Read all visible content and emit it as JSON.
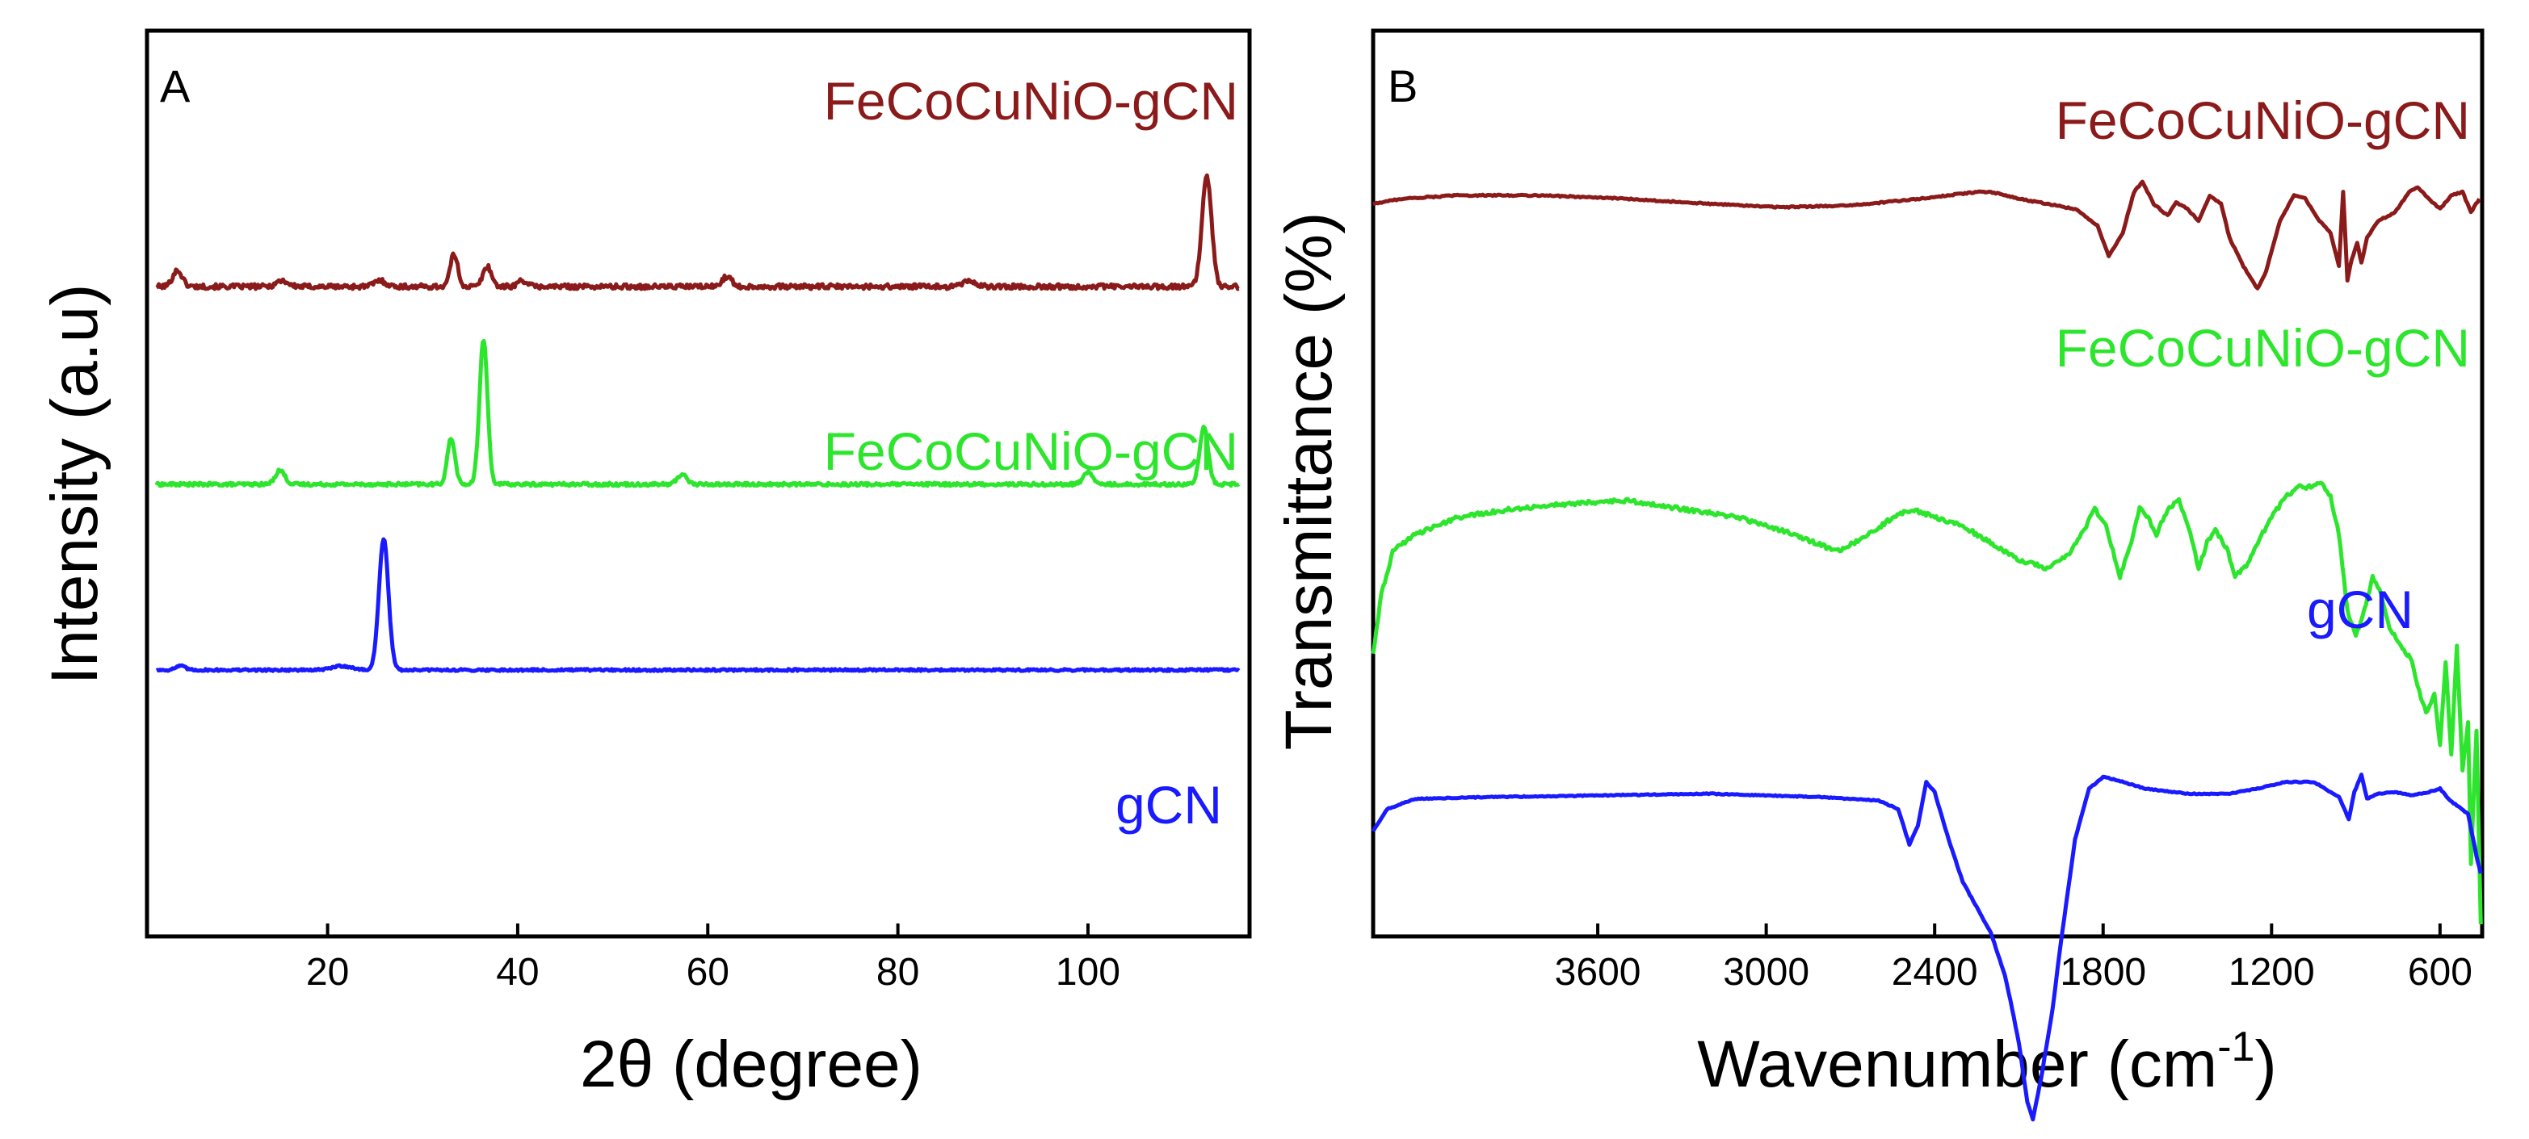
{
  "chart_data": [
    {
      "panel_label": "A",
      "type": "line",
      "xlabel": "2θ (degree)",
      "ylabel": "Intensity (a.u)",
      "xlim": [
        1,
        117
      ],
      "x_ticks": [
        20,
        40,
        60,
        80,
        100
      ],
      "y_ticks": [],
      "grid": false,
      "legend": "none",
      "series": [
        {
          "name": "FeCoCuNiO-gCN",
          "color": "#8b1a1a",
          "baseline": 0.1,
          "noise": 0.012,
          "peaks": [
            [
              4.2,
              0.08,
              0.5
            ],
            [
              15.2,
              0.03,
              0.6
            ],
            [
              25.5,
              0.03,
              0.6
            ],
            [
              33.3,
              0.16,
              0.4
            ],
            [
              36.8,
              0.1,
              0.45
            ],
            [
              40.5,
              0.03,
              0.5
            ],
            [
              62,
              0.05,
              0.5
            ],
            [
              87.5,
              0.03,
              0.6
            ],
            [
              112.5,
              0.55,
              0.5
            ]
          ]
        },
        {
          "name": "FeCoCuNiO-gCN",
          "color": "#2ee52e",
          "baseline": -0.88,
          "noise": 0.008,
          "peaks": [
            [
              15,
              0.07,
              0.5
            ],
            [
              33,
              0.23,
              0.4
            ],
            [
              36.4,
              0.72,
              0.42
            ],
            [
              57.3,
              0.05,
              0.5
            ],
            [
              100,
              0.06,
              0.5
            ],
            [
              112.2,
              0.28,
              0.45
            ]
          ]
        },
        {
          "name": "gCN",
          "color": "#1a1aff",
          "baseline": -1.8,
          "noise": 0.005,
          "peaks": [
            [
              4.5,
              0.02,
              0.5
            ],
            [
              21.5,
              0.02,
              1.0
            ],
            [
              25.9,
              0.65,
              0.5
            ]
          ]
        }
      ]
    },
    {
      "panel_label": "B",
      "type": "line",
      "xlabel": "Wavenumber (cm",
      "xlabel_sup": "-1",
      "xlabel_close": ")",
      "ylabel": "Transmittance (%)",
      "xlim": [
        4400,
        450
      ],
      "x_ticks": [
        3600,
        3000,
        2400,
        1800,
        1200,
        600
      ],
      "y_ticks": [],
      "grid": false,
      "legend": "none",
      "series": [
        {
          "name": "FeCoCuNiO-gCN",
          "color": "#8b1a1a",
          "noise": 0.004,
          "points": [
            [
              4400,
              -0.25
            ],
            [
              4300,
              -0.22
            ],
            [
              4100,
              -0.2
            ],
            [
              3800,
              -0.2
            ],
            [
              3500,
              -0.22
            ],
            [
              3200,
              -0.25
            ],
            [
              2950,
              -0.27
            ],
            [
              2700,
              -0.26
            ],
            [
              2450,
              -0.22
            ],
            [
              2250,
              -0.18
            ],
            [
              2200,
              -0.18
            ],
            [
              2100,
              -0.22
            ],
            [
              1900,
              -0.28
            ],
            [
              1820,
              -0.38
            ],
            [
              1780,
              -0.56
            ],
            [
              1730,
              -0.42
            ],
            [
              1690,
              -0.18
            ],
            [
              1660,
              -0.12
            ],
            [
              1620,
              -0.25
            ],
            [
              1570,
              -0.32
            ],
            [
              1540,
              -0.24
            ],
            [
              1500,
              -0.28
            ],
            [
              1460,
              -0.35
            ],
            [
              1420,
              -0.2
            ],
            [
              1380,
              -0.25
            ],
            [
              1350,
              -0.45
            ],
            [
              1300,
              -0.62
            ],
            [
              1250,
              -0.75
            ],
            [
              1220,
              -0.65
            ],
            [
              1170,
              -0.35
            ],
            [
              1120,
              -0.2
            ],
            [
              1080,
              -0.22
            ],
            [
              1030,
              -0.35
            ],
            [
              990,
              -0.42
            ],
            [
              960,
              -0.62
            ],
            [
              945,
              -0.18
            ],
            [
              930,
              -0.7
            ],
            [
              915,
              -0.58
            ],
            [
              895,
              -0.48
            ],
            [
              880,
              -0.6
            ],
            [
              860,
              -0.45
            ],
            [
              820,
              -0.35
            ],
            [
              760,
              -0.3
            ],
            [
              710,
              -0.18
            ],
            [
              680,
              -0.15
            ],
            [
              640,
              -0.22
            ],
            [
              600,
              -0.28
            ],
            [
              560,
              -0.2
            ],
            [
              520,
              -0.18
            ],
            [
              490,
              -0.3
            ],
            [
              460,
              -0.22
            ]
          ]
        },
        {
          "name": "FeCoCuNiO-gCN",
          "color": "#2ee52e",
          "noise": 0.012,
          "points": [
            [
              4400,
              -2.9
            ],
            [
              4370,
              -2.55
            ],
            [
              4330,
              -2.3
            ],
            [
              4250,
              -2.2
            ],
            [
              4100,
              -2.1
            ],
            [
              3900,
              -2.05
            ],
            [
              3700,
              -2.02
            ],
            [
              3500,
              -2.0
            ],
            [
              3300,
              -2.05
            ],
            [
              3100,
              -2.1
            ],
            [
              2900,
              -2.2
            ],
            [
              2750,
              -2.3
            ],
            [
              2650,
              -2.22
            ],
            [
              2550,
              -2.1
            ],
            [
              2480,
              -2.05
            ],
            [
              2400,
              -2.1
            ],
            [
              2300,
              -2.15
            ],
            [
              2200,
              -2.25
            ],
            [
              2100,
              -2.35
            ],
            [
              2000,
              -2.4
            ],
            [
              1920,
              -2.32
            ],
            [
              1860,
              -2.15
            ],
            [
              1830,
              -2.05
            ],
            [
              1790,
              -2.15
            ],
            [
              1740,
              -2.45
            ],
            [
              1700,
              -2.25
            ],
            [
              1670,
              -2.05
            ],
            [
              1640,
              -2.1
            ],
            [
              1610,
              -2.2
            ],
            [
              1570,
              -2.05
            ],
            [
              1530,
              -2.0
            ],
            [
              1490,
              -2.2
            ],
            [
              1460,
              -2.4
            ],
            [
              1430,
              -2.25
            ],
            [
              1400,
              -2.18
            ],
            [
              1360,
              -2.28
            ],
            [
              1330,
              -2.45
            ],
            [
              1290,
              -2.38
            ],
            [
              1250,
              -2.25
            ],
            [
              1200,
              -2.1
            ],
            [
              1150,
              -1.98
            ],
            [
              1100,
              -1.92
            ],
            [
              1060,
              -1.92
            ],
            [
              1020,
              -1.9
            ],
            [
              990,
              -1.98
            ],
            [
              960,
              -2.2
            ],
            [
              930,
              -2.65
            ],
            [
              900,
              -2.8
            ],
            [
              870,
              -2.65
            ],
            [
              840,
              -2.45
            ],
            [
              810,
              -2.55
            ],
            [
              780,
              -2.75
            ],
            [
              740,
              -2.85
            ],
            [
              700,
              -2.95
            ],
            [
              680,
              -3.1
            ],
            [
              650,
              -3.25
            ],
            [
              620,
              -3.15
            ],
            [
              600,
              -3.45
            ],
            [
              580,
              -2.95
            ],
            [
              560,
              -3.5
            ],
            [
              540,
              -2.85
            ],
            [
              520,
              -3.6
            ],
            [
              500,
              -3.3
            ],
            [
              490,
              -4.15
            ],
            [
              470,
              -3.35
            ],
            [
              455,
              -4.5
            ]
          ]
        },
        {
          "name": "gCN",
          "color": "#1a1aff",
          "noise": 0.003,
          "points": [
            [
              4400,
              -3.95
            ],
            [
              4350,
              -3.82
            ],
            [
              4250,
              -3.76
            ],
            [
              4000,
              -3.75
            ],
            [
              3600,
              -3.74
            ],
            [
              3200,
              -3.73
            ],
            [
              2800,
              -3.75
            ],
            [
              2600,
              -3.77
            ],
            [
              2530,
              -3.82
            ],
            [
              2490,
              -4.03
            ],
            [
              2460,
              -3.92
            ],
            [
              2430,
              -3.66
            ],
            [
              2400,
              -3.72
            ],
            [
              2350,
              -4.0
            ],
            [
              2300,
              -4.25
            ],
            [
              2250,
              -4.4
            ],
            [
              2200,
              -4.55
            ],
            [
              2150,
              -4.8
            ],
            [
              2130,
              -4.95
            ],
            [
              2100,
              -5.2
            ],
            [
              2070,
              -5.55
            ],
            [
              2050,
              -5.65
            ],
            [
              2020,
              -5.4
            ],
            [
              1980,
              -5.0
            ],
            [
              1950,
              -4.6
            ],
            [
              1900,
              -4.0
            ],
            [
              1850,
              -3.7
            ],
            [
              1800,
              -3.63
            ],
            [
              1750,
              -3.65
            ],
            [
              1650,
              -3.7
            ],
            [
              1500,
              -3.73
            ],
            [
              1350,
              -3.73
            ],
            [
              1250,
              -3.7
            ],
            [
              1150,
              -3.66
            ],
            [
              1050,
              -3.66
            ],
            [
              990,
              -3.72
            ],
            [
              960,
              -3.75
            ],
            [
              925,
              -3.88
            ],
            [
              905,
              -3.72
            ],
            [
              880,
              -3.62
            ],
            [
              860,
              -3.76
            ],
            [
              820,
              -3.73
            ],
            [
              760,
              -3.72
            ],
            [
              700,
              -3.74
            ],
            [
              640,
              -3.72
            ],
            [
              600,
              -3.7
            ],
            [
              570,
              -3.76
            ],
            [
              540,
              -3.8
            ],
            [
              500,
              -3.85
            ],
            [
              470,
              -4.1
            ],
            [
              455,
              -4.2
            ]
          ]
        }
      ]
    }
  ]
}
